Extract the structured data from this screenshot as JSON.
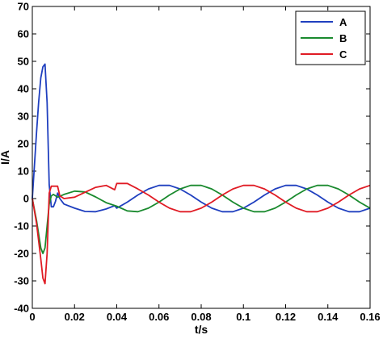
{
  "chart_data": {
    "type": "line",
    "xlabel": "t/s",
    "ylabel": "I/A",
    "xlim": [
      0,
      0.16
    ],
    "ylim": [
      -40,
      70
    ],
    "x_ticks": [
      "0",
      "0.02",
      "0.04",
      "0.06",
      "0.08",
      "0.1",
      "0.12",
      "0.14",
      "0.16"
    ],
    "y_ticks": [
      "70",
      "60",
      "50",
      "40",
      "30",
      "20",
      "10",
      "0",
      "-10",
      "-20",
      "-30",
      "-40"
    ],
    "grid": false,
    "legend_position": "top-right",
    "series": [
      {
        "name": "A",
        "color": "#1f3fbf",
        "x": [
          0,
          0.001,
          0.002,
          0.003,
          0.004,
          0.005,
          0.006,
          0.007,
          0.008,
          0.009,
          0.01,
          0.011,
          0.012,
          0.013,
          0.015,
          0.02,
          0.025,
          0.03,
          0.035,
          0.039,
          0.04,
          0.045,
          0.05,
          0.055,
          0.06,
          0.065,
          0.07,
          0.075,
          0.08,
          0.085,
          0.09,
          0.095,
          0.1,
          0.105,
          0.11,
          0.115,
          0.12,
          0.125,
          0.13,
          0.135,
          0.14,
          0.145,
          0.15,
          0.155,
          0.16
        ],
        "y": [
          0,
          12,
          24,
          35,
          44,
          48,
          49,
          35,
          5,
          -3,
          -3,
          -1,
          2,
          0,
          -2,
          -3.5,
          -4.7,
          -4.8,
          -3.8,
          -2.6,
          -3.5,
          -1.3,
          1.3,
          3.5,
          4.8,
          4.8,
          3.5,
          1.3,
          -1.3,
          -3.5,
          -4.8,
          -4.8,
          -3.5,
          -1.3,
          1.3,
          3.5,
          4.8,
          4.8,
          3.5,
          1.3,
          -1.3,
          -3.5,
          -4.8,
          -4.8,
          -3.5
        ]
      },
      {
        "name": "B",
        "color": "#1a8a2e",
        "x": [
          0,
          0.002,
          0.004,
          0.005,
          0.006,
          0.007,
          0.008,
          0.009,
          0.01,
          0.012,
          0.015,
          0.02,
          0.025,
          0.03,
          0.035,
          0.04,
          0.045,
          0.05,
          0.055,
          0.06,
          0.065,
          0.07,
          0.075,
          0.08,
          0.085,
          0.09,
          0.095,
          0.1,
          0.105,
          0.11,
          0.115,
          0.12,
          0.125,
          0.13,
          0.135,
          0.14,
          0.145,
          0.15,
          0.155,
          0.16
        ],
        "y": [
          0,
          -8,
          -18,
          -20,
          -18,
          -10,
          -2,
          1,
          1.5,
          0.5,
          1.5,
          2.7,
          2.4,
          0.6,
          -1.5,
          -2.8,
          -4.5,
          -4.8,
          -3.5,
          -1.3,
          1.3,
          3.5,
          4.8,
          4.8,
          3.5,
          1.3,
          -1.3,
          -3.5,
          -4.8,
          -4.8,
          -3.5,
          -1.3,
          1.3,
          3.5,
          4.8,
          4.8,
          3.5,
          1.3,
          -1.3,
          -3.5
        ]
      },
      {
        "name": "C",
        "color": "#e01b24",
        "x": [
          0,
          0.002,
          0.004,
          0.005,
          0.006,
          0.007,
          0.008,
          0.009,
          0.01,
          0.012,
          0.013,
          0.015,
          0.02,
          0.025,
          0.03,
          0.035,
          0.039,
          0.04,
          0.045,
          0.05,
          0.055,
          0.06,
          0.065,
          0.07,
          0.075,
          0.08,
          0.085,
          0.09,
          0.095,
          0.1,
          0.105,
          0.11,
          0.115,
          0.12,
          0.125,
          0.13,
          0.135,
          0.14,
          0.145,
          0.15,
          0.155,
          0.16
        ],
        "y": [
          0,
          -9,
          -22,
          -29,
          -31,
          -20,
          2,
          4.5,
          4.5,
          4.5,
          1,
          0,
          0.5,
          2.3,
          4.1,
          4.8,
          3.2,
          5.5,
          5.5,
          3.5,
          1.3,
          -1.3,
          -3.5,
          -4.8,
          -4.8,
          -3.5,
          -1.3,
          1.3,
          3.5,
          4.8,
          4.8,
          3.5,
          1.3,
          -1.3,
          -3.5,
          -4.8,
          -4.8,
          -3.5,
          -1.3,
          1.3,
          3.5,
          4.8
        ]
      }
    ]
  }
}
